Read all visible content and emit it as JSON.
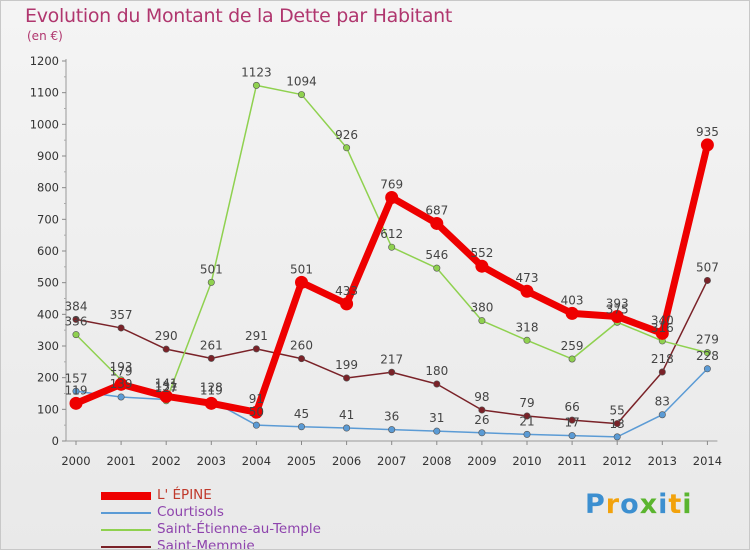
{
  "title": "Evolution du Montant de la Dette par Habitant",
  "unit_label": "(en €)",
  "logo": "Proxiti",
  "logo_colors": [
    "#3c8fd0",
    "#f2a20c",
    "#3c8fd0",
    "#5bb52f",
    "#3c8fd0",
    "#f2a20c",
    "#5bb52f"
  ],
  "chart_data": {
    "type": "line",
    "title": "Evolution du Montant de la Dette par Habitant",
    "ylabel": "(en €)",
    "xlabel": "",
    "ylim": [
      0,
      1200
    ],
    "grid": false,
    "legend_placement": "bottom-left",
    "categories": [
      "2000",
      "2001",
      "2002",
      "2003",
      "2004",
      "2005",
      "2006",
      "2007",
      "2008",
      "2009",
      "2010",
      "2011",
      "2012",
      "2013",
      "2014"
    ],
    "yticks": [
      "0",
      "100",
      "200",
      "300",
      "400",
      "500",
      "600",
      "700",
      "800",
      "900",
      "1000",
      "1100",
      "1200"
    ],
    "series": [
      {
        "name": "L' ÉPINE",
        "color": "#ee0000",
        "values": [
          119,
          179,
          141,
          119,
          91,
          501,
          433,
          769,
          687,
          552,
          473,
          403,
          393,
          340,
          935
        ],
        "labels": [
          "119",
          "179",
          "141",
          "119",
          "91",
          "501",
          "433",
          "769",
          "687",
          "552",
          "473",
          "403",
          "393",
          "340",
          "935"
        ]
      },
      {
        "name": "Courtisols",
        "color": "#5b9bd5",
        "values": [
          157,
          139,
          131,
          128,
          50,
          45,
          41,
          36,
          31,
          26,
          21,
          17,
          13,
          83,
          228
        ],
        "labels": [
          "157",
          "139",
          "131",
          "128",
          "50",
          "45",
          "41",
          "36",
          "31",
          "26",
          "21",
          "17",
          "13",
          "83",
          "228"
        ]
      },
      {
        "name": "Saint-Étienne-au-Temple",
        "color": "#8fd14f",
        "values": [
          336,
          193,
          127,
          501,
          1123,
          1094,
          926,
          612,
          546,
          380,
          318,
          259,
          375,
          316,
          279
        ],
        "labels": [
          "336",
          "193",
          "127",
          "501",
          "1123",
          "1094",
          "926",
          "612",
          "546",
          "380",
          "318",
          "259",
          "375",
          "316",
          "279"
        ]
      },
      {
        "name": "Saint-Memmie",
        "color": "#7a2228",
        "values": [
          384,
          357,
          290,
          261,
          291,
          260,
          199,
          217,
          180,
          98,
          79,
          66,
          55,
          218,
          507
        ],
        "labels": [
          "384",
          "357",
          "290",
          "261",
          "291",
          "260",
          "199",
          "217",
          "180",
          "98",
          "79",
          "66",
          "55",
          "218",
          "507"
        ]
      }
    ]
  }
}
